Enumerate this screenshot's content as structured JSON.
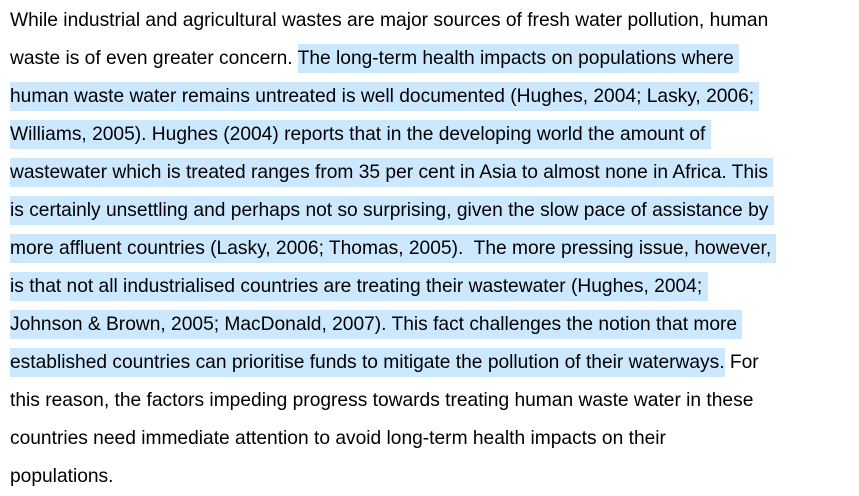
{
  "document": {
    "highlight_color": "#cce8ff",
    "lines": [
      {
        "before": "While industrial and agricultural wastes are major sources of fresh water pollution, human",
        "selected": "",
        "after": ""
      },
      {
        "before": "waste is of even greater concern. ",
        "selected": "The long-term health impacts on populations where ",
        "after": ""
      },
      {
        "before": "",
        "selected": "human waste water remains untreated is well documented (Hughes, 2004; Lasky, 2006; ",
        "after": ""
      },
      {
        "before": "",
        "selected": "Williams, 2005). Hughes (2004) reports that in the developing world the amount of ",
        "after": ""
      },
      {
        "before": "",
        "selected": "wastewater which is treated ranges from 35 per cent in Asia to almost none in Africa. This ",
        "after": ""
      },
      {
        "before": "",
        "selected": "is certainly unsettling and perhaps not so surprising, given the slow pace of assistance by ",
        "after": ""
      },
      {
        "before": "",
        "selected": "more affluent countries (Lasky, 2006; Thomas, 2005).  The more pressing issue, however, ",
        "after": ""
      },
      {
        "before": "",
        "selected": "is that not all industrialised countries are treating their wastewater (Hughes, 2004; ",
        "after": ""
      },
      {
        "before": "",
        "selected": "Johnson & Brown, 2005; MacDonald, 2007). This fact challenges the notion that more ",
        "after": ""
      },
      {
        "before": "",
        "selected": "established countries can prioritise funds to mitigate the pollution of their waterways.",
        "after": " For"
      },
      {
        "before": "this reason, the factors impeding progress towards treating human waste water in these",
        "selected": "",
        "after": ""
      },
      {
        "before": "countries need immediate attention to avoid long-term health impacts on their",
        "selected": "",
        "after": ""
      },
      {
        "before": "populations.",
        "selected": "",
        "after": ""
      }
    ]
  }
}
